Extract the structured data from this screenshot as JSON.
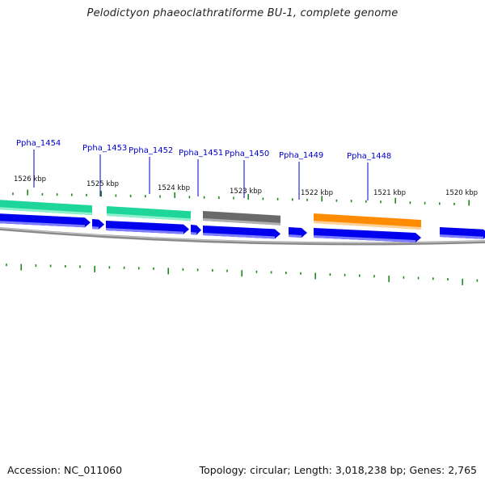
{
  "title": "Pelodictyon phaeoclathratiforme BU-1, complete genome",
  "footer": {
    "accession": "Accession: NC_011060",
    "summary": "Topology: circular; Length: 3,018,238 bp; Genes: 2,765"
  },
  "colors": {
    "cds": "#0000ee",
    "cds_light": "#7d7dff",
    "gene_teal": "#1fd69a",
    "gene_teal_light": "#8ff0cc",
    "gene_gray": "#6a6a6a",
    "gene_orange": "#ff8c00",
    "backbone": "#8a8a8a",
    "tick": "#1a8a1a",
    "label": "#0000cc"
  },
  "gene_labels": [
    "Ppha_1454",
    "Ppha_1453",
    "Ppha_1452",
    "Ppha_1451",
    "Ppha_1450",
    "Ppha_1449",
    "Ppha_1448"
  ],
  "scale_labels": [
    "1526 kbp",
    "1525 kbp",
    "1524 kbp",
    "1523 kbp",
    "1522 kbp",
    "1521 kbp",
    "1520 kbp"
  ]
}
